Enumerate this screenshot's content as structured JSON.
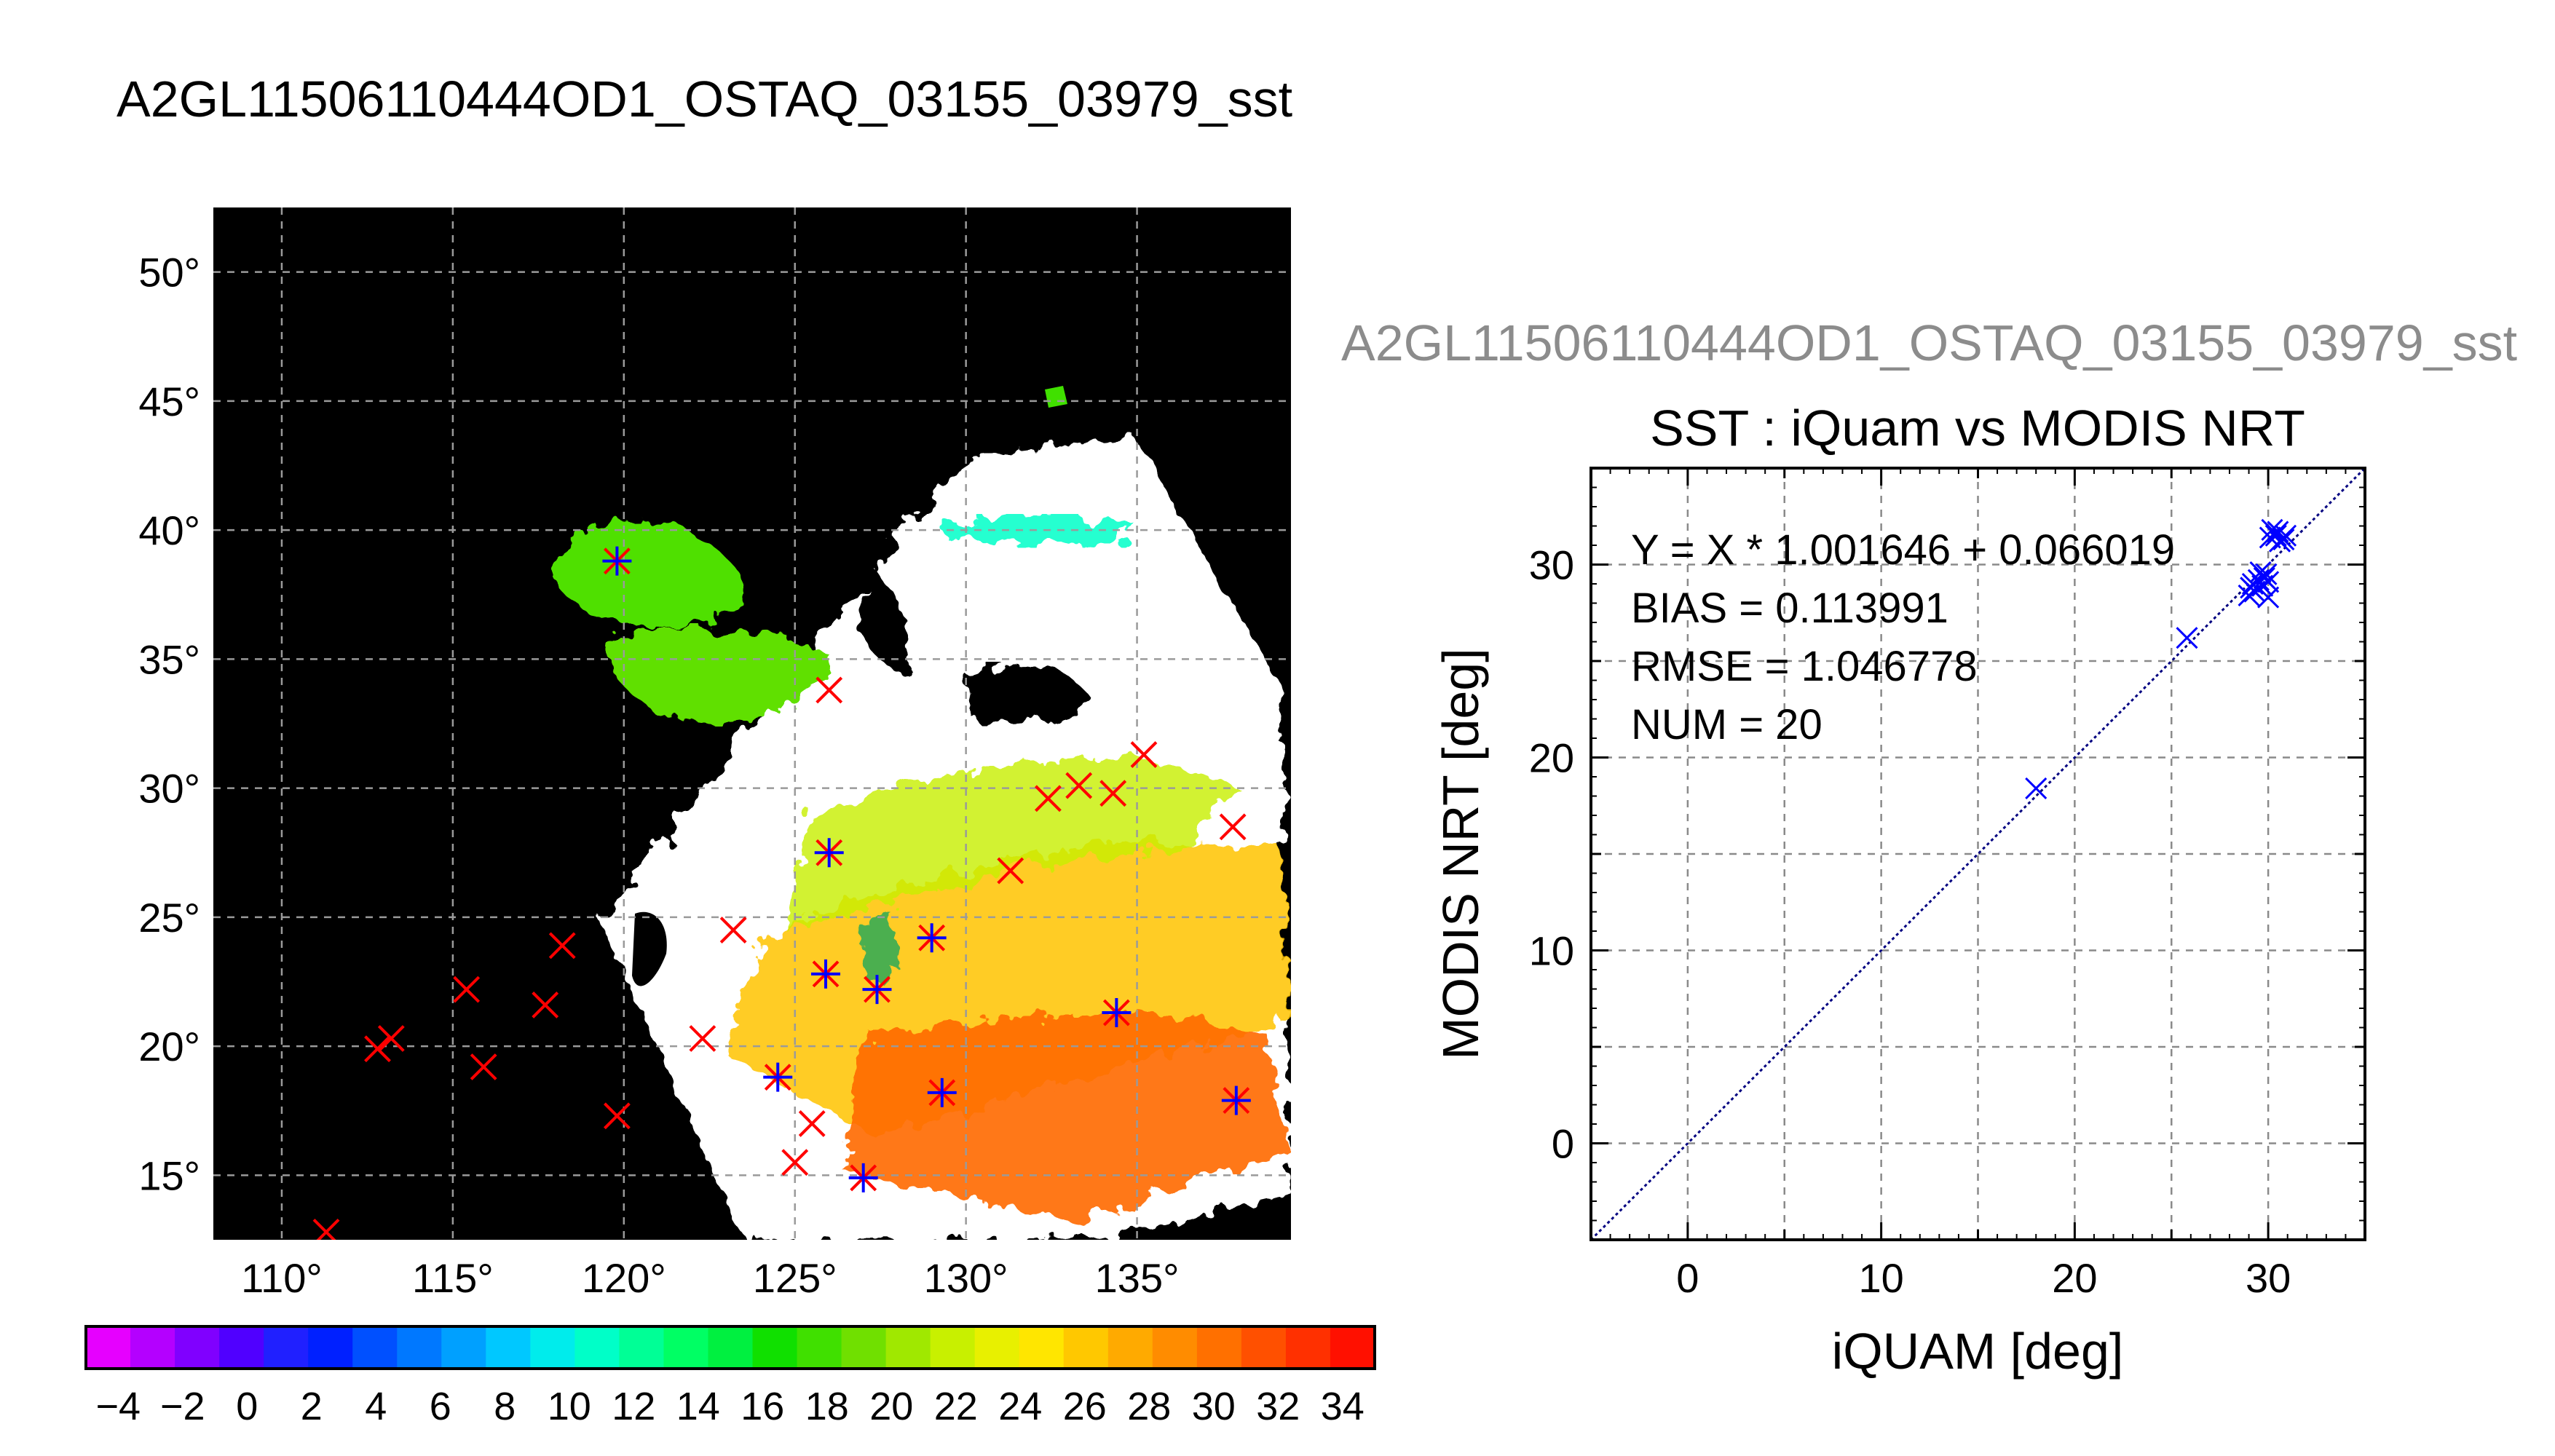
{
  "page_title": "A2GL11506110444OD1_OSTAQ_03155_03979_sst",
  "map": {
    "lon_ticks": [
      "110°",
      "115°",
      "120°",
      "125°",
      "130°",
      "135°"
    ],
    "lat_ticks": [
      "15°",
      "20°",
      "25°",
      "30°",
      "35°",
      "40°",
      "45°",
      "50°"
    ],
    "lon_range": [
      108,
      139.5
    ],
    "lat_range": [
      12.5,
      52.5
    ],
    "background": "#000000",
    "cloud_color": "#ffffff",
    "grid": true
  },
  "colorbar": {
    "tick_labels": [
      "−4",
      "−2",
      "0",
      "2",
      "4",
      "6",
      "8",
      "10",
      "12",
      "14",
      "16",
      "18",
      "20",
      "22",
      "24",
      "26",
      "28",
      "30",
      "32",
      "34"
    ],
    "range": [
      -5,
      35
    ],
    "colors": [
      "#e600ff",
      "#b400ff",
      "#8000ff",
      "#5000ff",
      "#2020ff",
      "#0020ff",
      "#0050ff",
      "#0078ff",
      "#00a0ff",
      "#00c8ff",
      "#00ecec",
      "#00ffc8",
      "#00ff96",
      "#00ff64",
      "#00f040",
      "#10e000",
      "#40e000",
      "#70e000",
      "#a0e800",
      "#c8f000",
      "#e8f000",
      "#ffe600",
      "#ffc800",
      "#ffaa00",
      "#ff8c00",
      "#ff7000",
      "#ff5000",
      "#ff3000",
      "#ff1000"
    ]
  },
  "scatter_panel": {
    "faded_title": "A2GL11506110444OD1_OSTAQ_03155_03979_sst",
    "title": "SST : iQuam vs MODIS NRT",
    "stats": {
      "fit": "Y = X * 1.001646 + 0.066019",
      "bias": "BIAS = 0.113991",
      "rmse": "RMSE = 1.046778",
      "num": "NUM = 20"
    }
  },
  "chart_data": [
    {
      "type": "scatter",
      "title": "SST : iQuam vs MODIS NRT",
      "xlabel": "iQUAM [deg]",
      "ylabel": "MODIS NRT [deg]",
      "xlim": [
        -5,
        35
      ],
      "ylim": [
        -5,
        35
      ],
      "xticks": [
        0,
        10,
        20,
        30
      ],
      "yticks": [
        0,
        10,
        20,
        30
      ],
      "grid": true,
      "marker_color": "#0000ff",
      "fit_line_color": "#000080",
      "points": [
        {
          "x": 18.0,
          "y": 18.4
        },
        {
          "x": 25.8,
          "y": 26.2
        },
        {
          "x": 29.0,
          "y": 28.4
        },
        {
          "x": 29.1,
          "y": 28.8
        },
        {
          "x": 29.2,
          "y": 29.0
        },
        {
          "x": 29.3,
          "y": 28.6
        },
        {
          "x": 29.5,
          "y": 29.2
        },
        {
          "x": 29.6,
          "y": 29.6
        },
        {
          "x": 29.7,
          "y": 28.9
        },
        {
          "x": 29.8,
          "y": 29.3
        },
        {
          "x": 29.9,
          "y": 29.5
        },
        {
          "x": 30.0,
          "y": 28.3
        },
        {
          "x": 30.0,
          "y": 29.1
        },
        {
          "x": 30.1,
          "y": 31.4
        },
        {
          "x": 30.2,
          "y": 31.8
        },
        {
          "x": 30.4,
          "y": 31.5
        },
        {
          "x": 30.5,
          "y": 31.7
        },
        {
          "x": 30.6,
          "y": 31.2
        },
        {
          "x": 30.8,
          "y": 31.3
        },
        {
          "x": 30.9,
          "y": 31.5
        }
      ]
    },
    {
      "type": "scatter",
      "title": "",
      "xlabel": "",
      "ylabel": "",
      "xlim": [
        108,
        139.5
      ],
      "ylim": [
        12.5,
        52.5
      ],
      "series": [
        {
          "name": "",
          "color": "#ff0000",
          "marker": "x",
          "x": [
            111.3,
            112.8,
            113.2,
            115.4,
            115.9,
            117.7,
            118.2,
            119.8,
            119.8,
            122.3,
            123.2,
            124.5,
            125.0,
            125.5,
            125.9,
            126.0,
            126.0,
            127.0,
            127.4,
            129.0,
            129.3,
            131.3,
            132.4,
            133.3,
            134.3,
            134.4,
            135.2,
            137.8,
            137.9
          ],
          "y": [
            12.8,
            19.9,
            20.3,
            22.2,
            19.2,
            21.6,
            23.9,
            17.3,
            38.8,
            20.3,
            24.5,
            18.8,
            15.5,
            17.0,
            22.8,
            27.5,
            33.8,
            14.9,
            22.2,
            24.2,
            18.2,
            26.8,
            29.6,
            30.1,
            29.8,
            21.3,
            31.3,
            28.5,
            17.9
          ]
        },
        {
          "name": "",
          "color": "#0000ff",
          "marker": "+",
          "x": [
            119.8,
            124.5,
            125.9,
            126.0,
            127.0,
            127.4,
            129.0,
            129.3,
            134.4,
            137.9
          ],
          "y": [
            38.8,
            18.8,
            22.8,
            27.5,
            14.9,
            22.2,
            24.2,
            18.2,
            21.3,
            17.9
          ]
        }
      ]
    }
  ]
}
